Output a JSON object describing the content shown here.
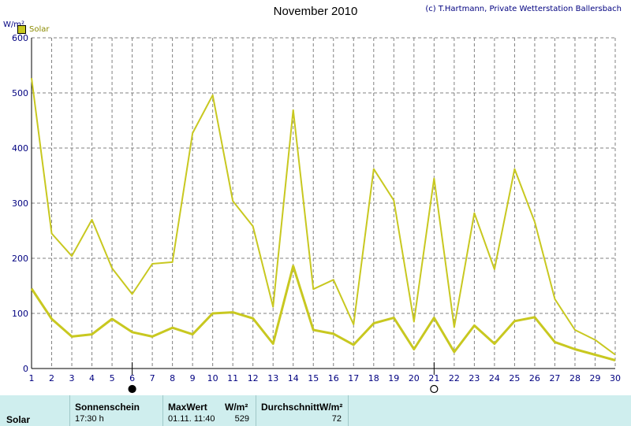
{
  "title": "November 2010",
  "credit": "(c) T.Hartmann, Private Wetterstation Ballersbach",
  "unit_label": "W/m²",
  "legend": {
    "label": "Solar",
    "color": "#c8c820"
  },
  "chart_data": {
    "type": "line",
    "title": "November 2010",
    "ylabel": "W/m²",
    "ylim": [
      0,
      600
    ],
    "yticks": [
      0,
      100,
      200,
      300,
      400,
      500,
      600
    ],
    "x": [
      1,
      2,
      3,
      4,
      5,
      6,
      7,
      8,
      9,
      10,
      11,
      12,
      13,
      14,
      15,
      16,
      17,
      18,
      19,
      20,
      21,
      22,
      23,
      24,
      25,
      26,
      27,
      28,
      29,
      30
    ],
    "grid": true,
    "series": [
      {
        "name": "Solar",
        "values": [
          527,
          245,
          204,
          270,
          182,
          135,
          190,
          193,
          427,
          496,
          304,
          258,
          112,
          469,
          144,
          161,
          80,
          362,
          305,
          85,
          345,
          75,
          282,
          180,
          362,
          266,
          126,
          70,
          52,
          25
        ],
        "color": "#c8c820"
      },
      {
        "values": [
          145,
          90,
          58,
          62,
          90,
          66,
          58,
          74,
          62,
          100,
          102,
          91,
          45,
          186,
          70,
          63,
          43,
          82,
          92,
          35,
          92,
          30,
          78,
          45,
          86,
          93,
          48,
          35,
          25,
          15
        ],
        "color": "#c8c820"
      }
    ],
    "moon_markers": [
      {
        "day": 6,
        "phase": "new-moon"
      },
      {
        "day": 21,
        "phase": "full-moon"
      }
    ]
  },
  "panel": {
    "row_label": "Solar",
    "sunshine_label": "Sonnenschein",
    "sunshine_value": "17:30 h",
    "max_label": "MaxWert",
    "max_unit": "W/m²",
    "max_time": "01.11.  11:40",
    "max_value": "529",
    "avg_label": "DurchschnittW/m²",
    "avg_value": "72"
  }
}
